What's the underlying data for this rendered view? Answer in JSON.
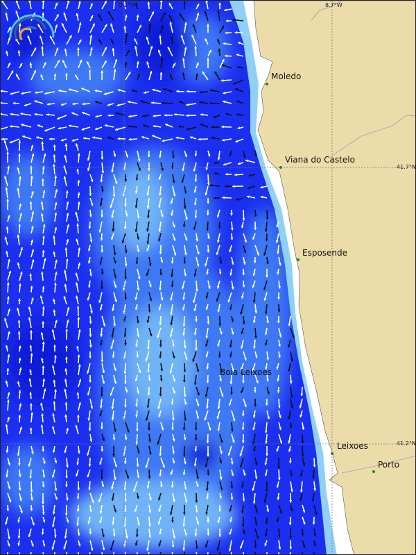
{
  "map": {
    "grid_labels": {
      "lon_left": "9.2°W",
      "lon_right": "8.7°W",
      "lat_top": "41.7°N",
      "lat_bottom": "41.2°N"
    },
    "places": [
      {
        "name": "Moledo"
      },
      {
        "name": "Viana do Castelo"
      },
      {
        "name": "Esposende"
      },
      {
        "name": "Boia Leixoes"
      },
      {
        "name": "Leixoes"
      },
      {
        "name": "Porto"
      }
    ],
    "colors": {
      "land": "#ecdcaa",
      "deep_sea": "#1a2ff0",
      "mid_sea": "#3c78f5",
      "light_sea": "#6fb4f7",
      "coast": "#ffffff",
      "place_dot": "#1a8a1a"
    },
    "logo": "rainbow-arc-logo",
    "layers": [
      "current-direction-arrows",
      "current-speed-shading"
    ]
  }
}
